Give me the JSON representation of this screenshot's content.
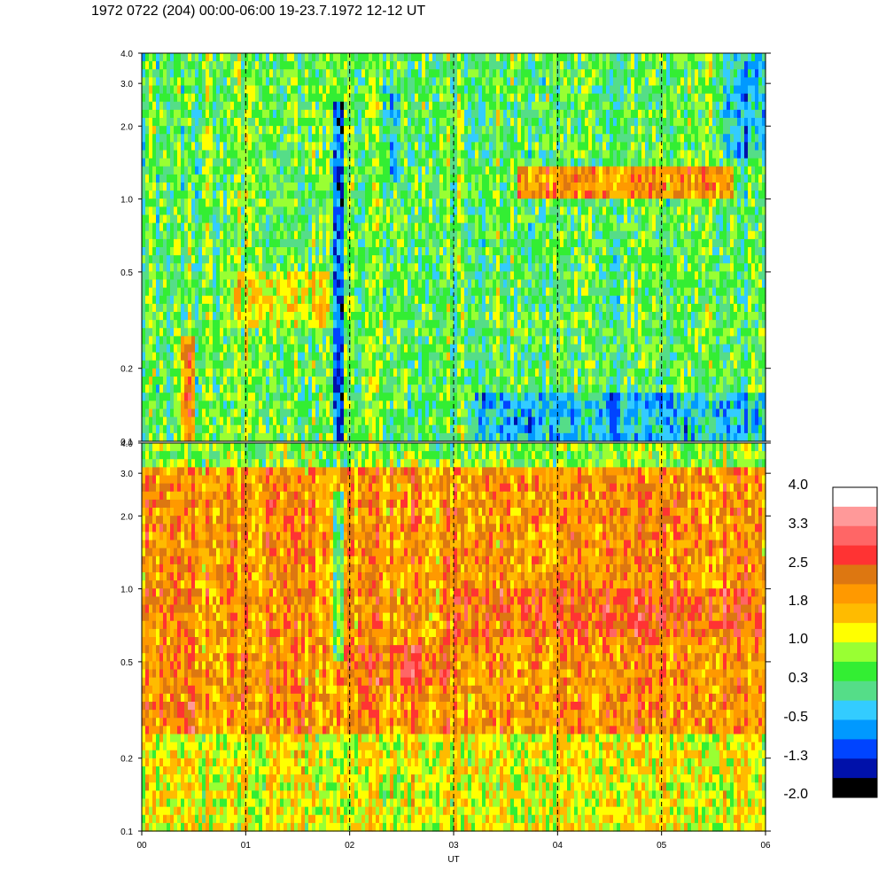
{
  "title": "1972 0722 (204) 00:00-06:00 19-23.7.1972  12-12 UT",
  "chart_data": {
    "type": "heatmap",
    "x_axis": {
      "label": "UT",
      "range": [
        0,
        6
      ],
      "tick_values": [
        0,
        1,
        2,
        3,
        4,
        5,
        6
      ],
      "tick_labels": [
        "00",
        "01",
        "02",
        "03",
        "04",
        "05",
        "06"
      ],
      "hour_dividers_dashed": [
        1,
        2,
        3,
        4,
        5
      ]
    },
    "panels": [
      {
        "y_scale": "log",
        "y_range": [
          0.1,
          4.0
        ],
        "y_tick_values": [
          0.1,
          0.2,
          0.5,
          1.0,
          2.0,
          3.0,
          4.0
        ],
        "y_tick_labels": [
          "0.1",
          "0.2",
          "0.5",
          "1.0",
          "2.0",
          "3.0",
          "4.0"
        ],
        "background_level": 0.3,
        "features": [
          {
            "x": [
              0.38,
              0.5
            ],
            "y": [
              0.1,
              0.28
            ],
            "level": 1.8
          },
          {
            "x": [
              3.6,
              5.7
            ],
            "y": [
              1.0,
              1.4
            ],
            "level": 1.8
          },
          {
            "x": [
              0.9,
              1.8
            ],
            "y": [
              0.3,
              0.5
            ],
            "level": 1.0
          },
          {
            "x": [
              3.2,
              6.0
            ],
            "y": [
              0.1,
              0.16
            ],
            "level": -0.5
          },
          {
            "x": [
              5.6,
              6.0
            ],
            "y": [
              1.5,
              4.0
            ],
            "level": -0.5
          },
          {
            "x": [
              1.85,
              1.95
            ],
            "y": [
              0.1,
              2.5
            ],
            "level": -1.3
          },
          {
            "x": [
              2.4,
              2.5
            ],
            "y": [
              1.2,
              3.0
            ],
            "level": -0.5
          }
        ]
      },
      {
        "y_scale": "log",
        "y_range": [
          0.1,
          4.0
        ],
        "y_tick_values": [
          0.1,
          0.2,
          0.5,
          1.0,
          2.0,
          3.0,
          4.0
        ],
        "y_tick_labels": [
          "0.1",
          "0.2",
          "0.5",
          "1.0",
          "2.0",
          "3.0",
          "4.0"
        ],
        "background_level": 1.8,
        "features": [
          {
            "x": [
              0.38,
              0.5
            ],
            "y": [
              0.1,
              0.35
            ],
            "level": 2.5
          },
          {
            "x": [
              3.0,
              6.0
            ],
            "y": [
              0.65,
              1.0
            ],
            "level": 2.2
          },
          {
            "x": [
              1.9,
              3.0
            ],
            "y": [
              0.4,
              0.6
            ],
            "level": 2.2
          },
          {
            "x": [
              0.0,
              6.0
            ],
            "y": [
              0.1,
              0.25
            ],
            "level": 1.0
          },
          {
            "x": [
              0.0,
              6.0
            ],
            "y": [
              3.2,
              4.0
            ],
            "level": 0.5
          },
          {
            "x": [
              1.85,
              1.95
            ],
            "y": [
              0.5,
              2.5
            ],
            "level": 0.3
          }
        ]
      }
    ],
    "colorbar": {
      "labels": [
        "4.0",
        "3.3",
        "2.5",
        "1.8",
        "1.0",
        "0.3",
        "-0.5",
        "-1.3",
        "-2.0"
      ],
      "label_values": [
        4.0,
        3.3,
        2.5,
        1.8,
        1.0,
        0.3,
        -0.5,
        -1.3,
        -2.0
      ],
      "colors_top_to_bottom": [
        "#ffffff",
        "#ff9999",
        "#ff6666",
        "#ff3333",
        "#dd7711",
        "#ff9900",
        "#ffbb00",
        "#ffff00",
        "#99ff33",
        "#33ee33",
        "#55dd88",
        "#33ccff",
        "#0099ff",
        "#0044ff",
        "#0011aa",
        "#000000"
      ]
    }
  }
}
